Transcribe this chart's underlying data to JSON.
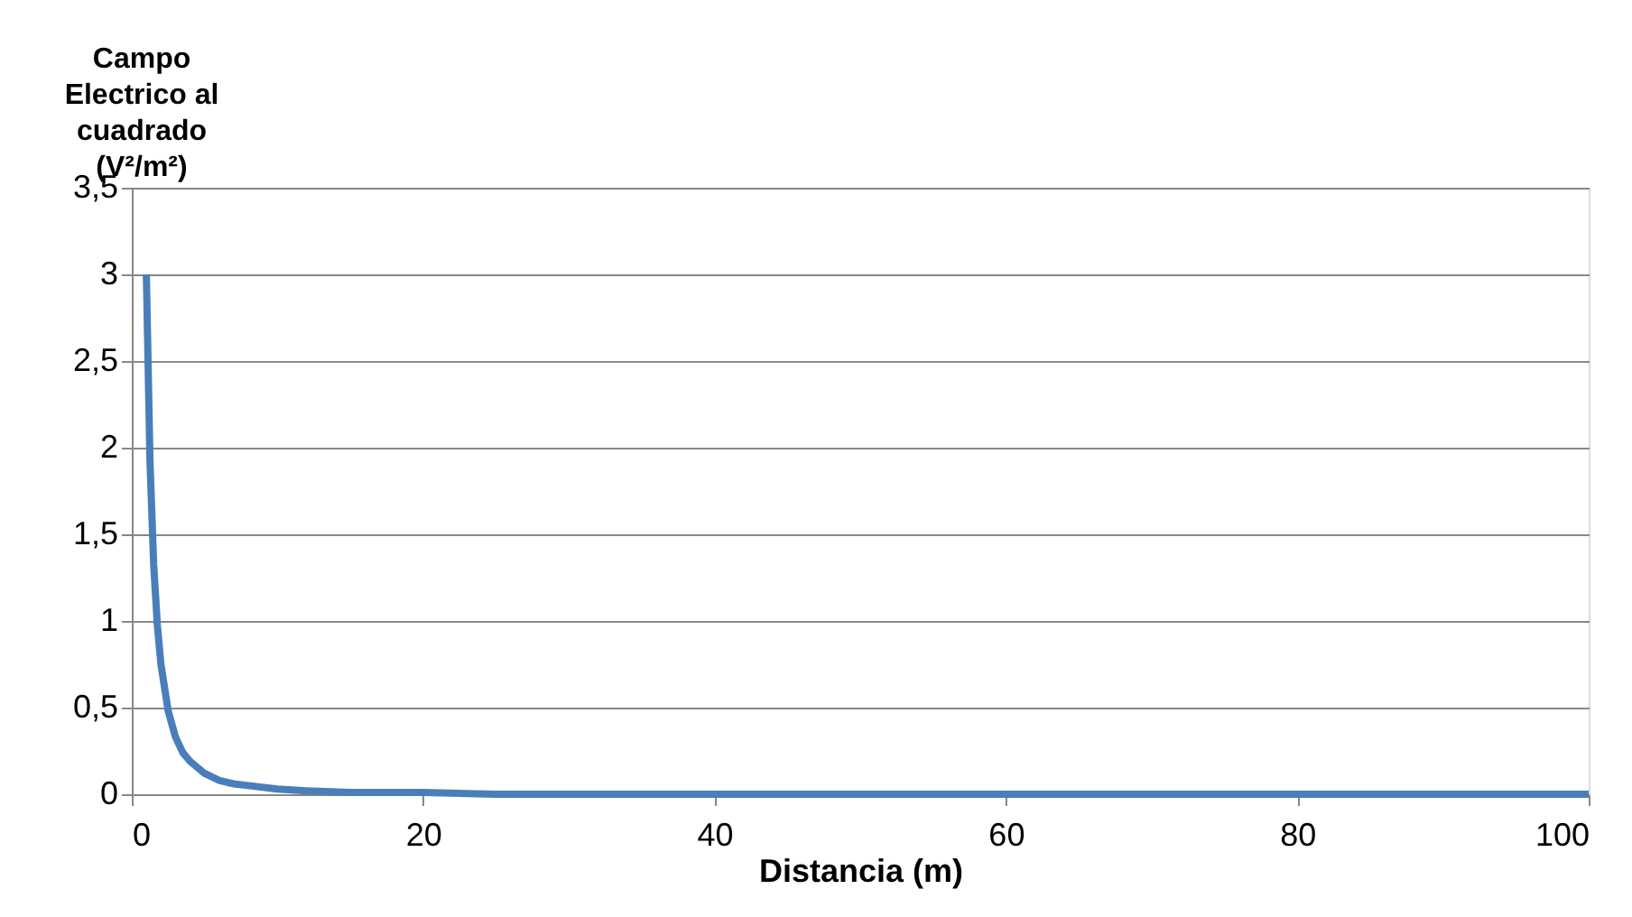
{
  "chart_data": {
    "type": "line",
    "xlabel": "Distancia (m)",
    "ylabel": "Campo Electrico al cuadrado (V²/m²)",
    "x": [
      1,
      1.25,
      1.5,
      1.75,
      2,
      2.5,
      3,
      3.5,
      4,
      5,
      6,
      7,
      8,
      10,
      12,
      15,
      20,
      25,
      30,
      40,
      50,
      60,
      70,
      80,
      90,
      100
    ],
    "series": [
      {
        "color": "#4a7ebb",
        "values": [
          3,
          1.92,
          1.33,
          0.98,
          0.75,
          0.48,
          0.33,
          0.24,
          0.19,
          0.12,
          0.08,
          0.06,
          0.05,
          0.03,
          0.02,
          0.01,
          0.01,
          0,
          0,
          0,
          0,
          0,
          0,
          0,
          0,
          0
        ]
      }
    ],
    "xlim": [
      0,
      100
    ],
    "xticks": [
      0,
      20,
      40,
      60,
      80,
      100
    ],
    "ylim": [
      0,
      3.5
    ],
    "yticks": [
      0,
      {
        "value": 0.5,
        "label": "0,5"
      },
      1,
      {
        "value": 1.5,
        "label": "1,5"
      },
      2,
      {
        "value": 2.5,
        "label": "2,5"
      },
      3,
      {
        "value": 3.5,
        "label": "3,5"
      }
    ],
    "grid": "y",
    "legend": false,
    "marker": "none",
    "line_style": "solid"
  }
}
